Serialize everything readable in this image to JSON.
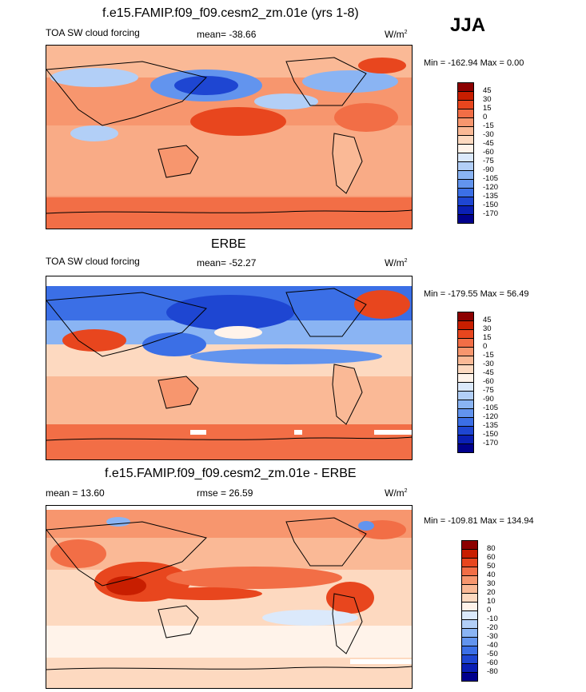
{
  "season": "JJA",
  "panels": [
    {
      "id": "model",
      "title": "f.e15.FAMIP.f09_f09.cesm2_zm.01e (yrs 1-8)",
      "left_label": "TOA SW cloud forcing",
      "center_label": "mean= -38.66",
      "units": "W/m",
      "units_sup": "2",
      "stats": "Min = -162.94 Max =   0.00",
      "colorbar": {
        "labels": [
          "45",
          "30",
          "15",
          "0",
          "-15",
          "-30",
          "-45",
          "-60",
          "-75",
          "-90",
          "-105",
          "-120",
          "-135",
          "-150",
          "-170"
        ],
        "colors": [
          "#8c0000",
          "#c81e00",
          "#e8461e",
          "#f26e46",
          "#f7966e",
          "#fab996",
          "#fdd9c0",
          "#fff3ea",
          "#dbe9fb",
          "#b2cff7",
          "#8ab4f3",
          "#6294ee",
          "#3b6fe6",
          "#1e46d2",
          "#0a1fb4",
          "#00008c"
        ]
      }
    },
    {
      "id": "obs",
      "title": "ERBE",
      "left_label": "TOA SW cloud forcing",
      "center_label": "mean= -52.27",
      "units": "W/m",
      "units_sup": "2",
      "stats": "Min = -179.55 Max =  56.49",
      "colorbar": {
        "labels": [
          "45",
          "30",
          "15",
          "0",
          "-15",
          "-30",
          "-45",
          "-60",
          "-75",
          "-90",
          "-105",
          "-120",
          "-135",
          "-150",
          "-170"
        ],
        "colors": [
          "#8c0000",
          "#c81e00",
          "#e8461e",
          "#f26e46",
          "#f7966e",
          "#fab996",
          "#fdd9c0",
          "#fff3ea",
          "#dbe9fb",
          "#b2cff7",
          "#8ab4f3",
          "#6294ee",
          "#3b6fe6",
          "#1e46d2",
          "#0a1fb4",
          "#00008c"
        ]
      }
    },
    {
      "id": "diff",
      "title": "f.e15.FAMIP.f09_f09.cesm2_zm.01e - ERBE",
      "left_label": "mean =  13.60",
      "center_label": "rmse =  26.59",
      "units": "W/m",
      "units_sup": "2",
      "stats": "Min = -109.81 Max = 134.94",
      "colorbar": {
        "labels": [
          "80",
          "60",
          "50",
          "40",
          "30",
          "20",
          "10",
          "0",
          "-10",
          "-20",
          "-30",
          "-40",
          "-50",
          "-60",
          "-80"
        ],
        "colors": [
          "#8c0000",
          "#c81e00",
          "#e8461e",
          "#f26e46",
          "#f7966e",
          "#fab996",
          "#fdd9c0",
          "#fff3ea",
          "#dbe9fb",
          "#b2cff7",
          "#8ab4f3",
          "#6294ee",
          "#3b6fe6",
          "#1e46d2",
          "#0a1fb4",
          "#00008c"
        ]
      }
    }
  ],
  "chart_data": [
    {
      "type": "heatmap",
      "title": "f.e15.FAMIP.f09_f09.cesm2_zm.01e (yrs 1-8)",
      "variable": "TOA SW cloud forcing",
      "units": "W/m2",
      "season": "JJA",
      "mean": -38.66,
      "min": -162.94,
      "max": 0.0,
      "levels": [
        45,
        30,
        15,
        0,
        -15,
        -30,
        -45,
        -60,
        -75,
        -90,
        -105,
        -120,
        -135,
        -150,
        -170
      ]
    },
    {
      "type": "heatmap",
      "title": "ERBE",
      "variable": "TOA SW cloud forcing",
      "units": "W/m2",
      "season": "JJA",
      "mean": -52.27,
      "min": -179.55,
      "max": 56.49,
      "levels": [
        45,
        30,
        15,
        0,
        -15,
        -30,
        -45,
        -60,
        -75,
        -90,
        -105,
        -120,
        -135,
        -150,
        -170
      ]
    },
    {
      "type": "heatmap",
      "title": "f.e15.FAMIP.f09_f09.cesm2_zm.01e - ERBE",
      "units": "W/m2",
      "season": "JJA",
      "mean": 13.6,
      "rmse": 26.59,
      "min": -109.81,
      "max": 134.94,
      "levels": [
        80,
        60,
        50,
        40,
        30,
        20,
        10,
        0,
        -10,
        -20,
        -30,
        -40,
        -50,
        -60,
        -80
      ]
    }
  ]
}
